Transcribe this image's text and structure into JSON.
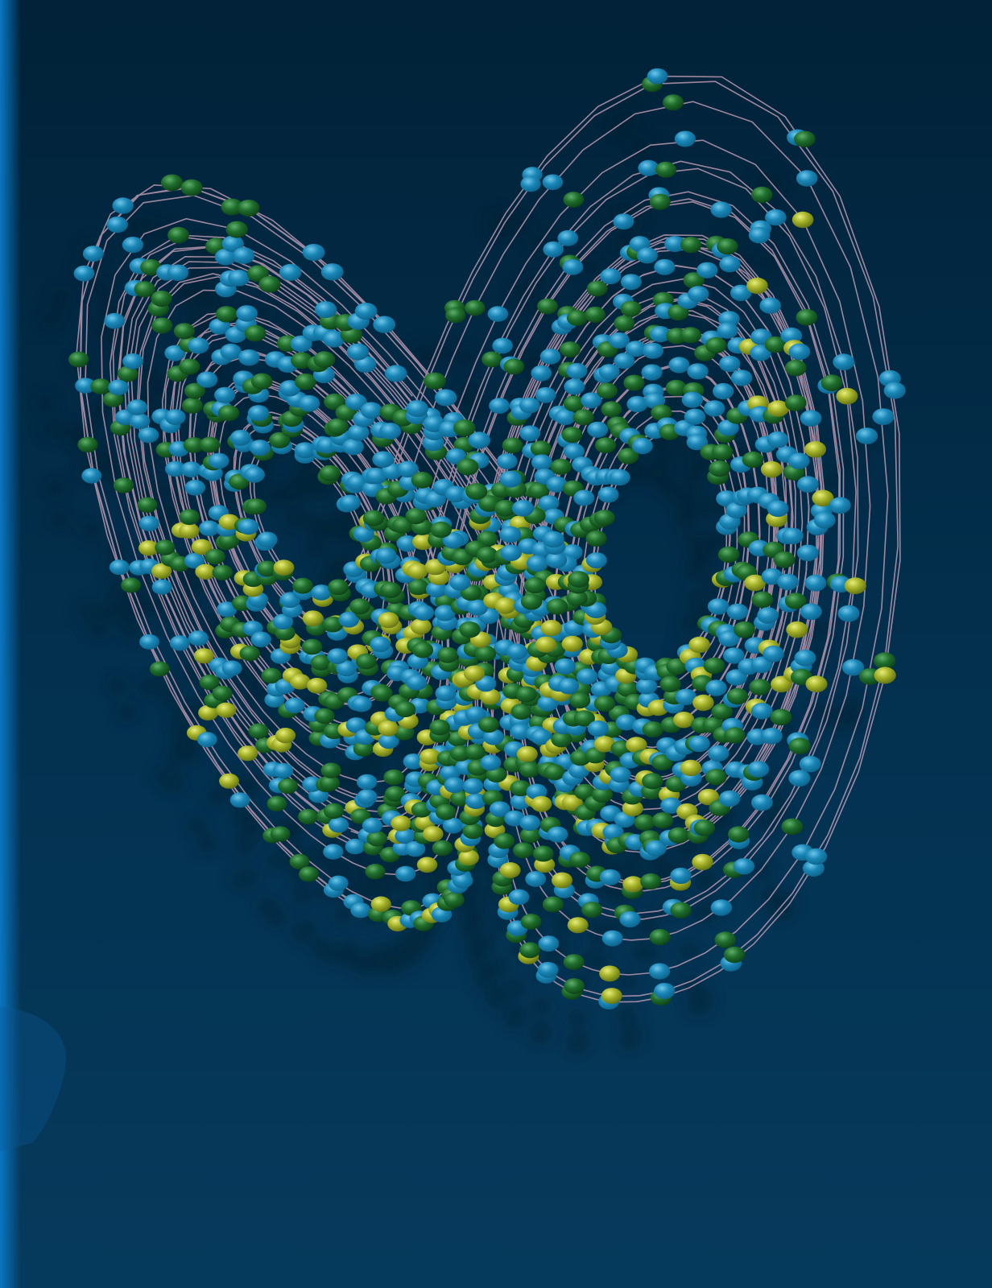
{
  "image": {
    "subject": "lorenz-attractor-render",
    "palette": {
      "background_top": "#012238",
      "background_mid": "#033150",
      "background_bottom": "#063a5c",
      "left_edge_glow": "#0b76c2",
      "bead_blue": "#1a86b6",
      "bead_blue_dark": "#0b5f86",
      "bead_green": "#1f6d2c",
      "bead_green_dark": "#0b3d16",
      "bead_olive": "#a3b028",
      "bead_olive_dark": "#5a6a10",
      "thread": "#c6a0b8",
      "shadow": "#001a2c"
    }
  }
}
